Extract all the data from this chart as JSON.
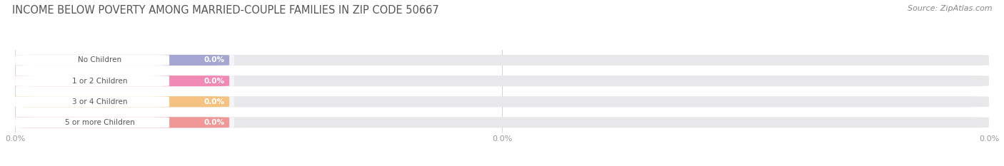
{
  "title": "INCOME BELOW POVERTY AMONG MARRIED-COUPLE FAMILIES IN ZIP CODE 50667",
  "source": "Source: ZipAtlas.com",
  "categories": [
    "No Children",
    "1 or 2 Children",
    "3 or 4 Children",
    "5 or more Children"
  ],
  "values": [
    0.0,
    0.0,
    0.0,
    0.0
  ],
  "bar_colors": [
    "#9999cc",
    "#f077aa",
    "#f5b96e",
    "#f08888"
  ],
  "bg_track_color": "#e8e8ea",
  "pill_bg_color": "#f5f5f7",
  "bar_label_color": "#ffffff",
  "category_label_color": "#555555",
  "title_color": "#555555",
  "source_color": "#888888",
  "background_color": "#ffffff",
  "xtick_positions": [
    0.0,
    0.5,
    1.0
  ],
  "xtick_label": "0.0%",
  "grid_color": "#cccccc"
}
